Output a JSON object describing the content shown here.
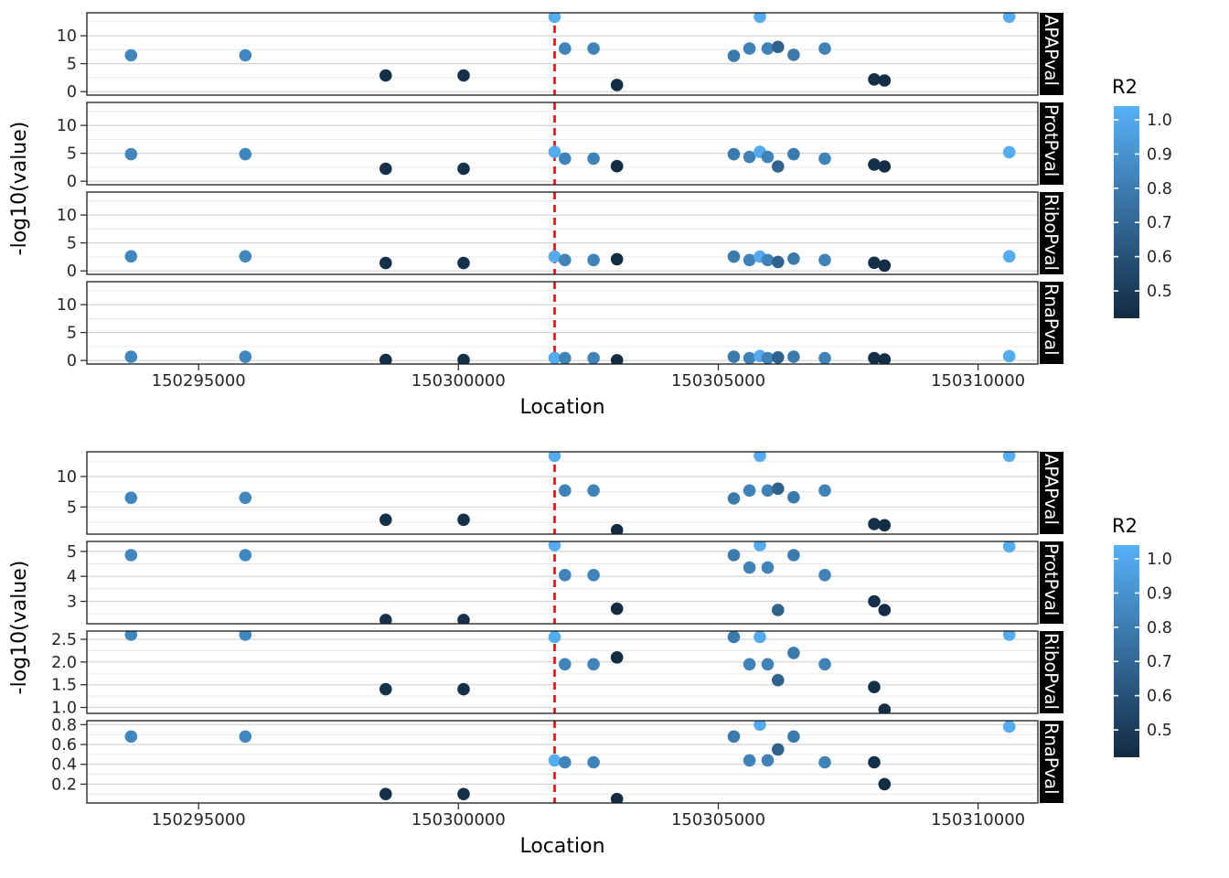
{
  "chart_data": {
    "type": "scatter",
    "ylabel": "-log10(value)",
    "x": {
      "label": "Location",
      "tick_values": [
        150295000,
        150300000,
        150305000,
        150310000
      ],
      "tick_labels": [
        "150295000",
        "150300000",
        "150305000",
        "150310000"
      ],
      "lim": [
        150292850,
        150311150
      ]
    },
    "vline": {
      "x": 150301850,
      "color": "#FF0000",
      "style": "dashed"
    },
    "legend": {
      "title": "R2",
      "tick_values": [
        1.0,
        0.9,
        0.8,
        0.7,
        0.6,
        0.5
      ],
      "tick_labels": [
        "1.0",
        "0.9",
        "0.8",
        "0.7",
        "0.6",
        "0.5"
      ],
      "bar_domain": [
        0.42,
        1.04
      ],
      "point_domain": [
        0.42,
        1.0
      ],
      "low_color": "#132B43",
      "high_color": "#56B1F7"
    },
    "points": [
      {
        "location": 150293700,
        "r2": 0.82,
        "apap": 6.5,
        "prot": 4.85,
        "ribo": 2.6,
        "rna": 0.68
      },
      {
        "location": 150295900,
        "r2": 0.82,
        "apap": 6.5,
        "prot": 4.85,
        "ribo": 2.6,
        "rna": 0.68
      },
      {
        "location": 150298600,
        "r2": 0.44,
        "apap": 2.9,
        "prot": 2.25,
        "ribo": 1.4,
        "rna": 0.1
      },
      {
        "location": 150300100,
        "r2": 0.44,
        "apap": 2.9,
        "prot": 2.25,
        "ribo": 1.4,
        "rna": 0.1
      },
      {
        "location": 150301850,
        "r2": 0.98,
        "apap": 13.4,
        "prot": 5.25,
        "ribo": 2.55,
        "rna": 0.44
      },
      {
        "location": 150302050,
        "r2": 0.8,
        "apap": 7.7,
        "prot": 4.05,
        "ribo": 1.95,
        "rna": 0.42
      },
      {
        "location": 150302600,
        "r2": 0.8,
        "apap": 7.7,
        "prot": 4.05,
        "ribo": 1.95,
        "rna": 0.42
      },
      {
        "location": 150303050,
        "r2": 0.42,
        "apap": 1.2,
        "prot": 2.7,
        "ribo": 2.1,
        "rna": 0.05
      },
      {
        "location": 150305300,
        "r2": 0.76,
        "apap": 6.4,
        "prot": 4.85,
        "ribo": 2.55,
        "rna": 0.68
      },
      {
        "location": 150305600,
        "r2": 0.8,
        "apap": 7.7,
        "prot": 4.35,
        "ribo": 1.95,
        "rna": 0.44
      },
      {
        "location": 150305800,
        "r2": 0.97,
        "apap": 13.4,
        "prot": 5.25,
        "ribo": 2.55,
        "rna": 0.8
      },
      {
        "location": 150305950,
        "r2": 0.8,
        "apap": 7.7,
        "prot": 4.35,
        "ribo": 1.95,
        "rna": 0.44
      },
      {
        "location": 150306150,
        "r2": 0.66,
        "apap": 8.0,
        "prot": 2.65,
        "ribo": 1.6,
        "rna": 0.55
      },
      {
        "location": 150306450,
        "r2": 0.76,
        "apap": 6.6,
        "prot": 4.85,
        "ribo": 2.2,
        "rna": 0.68
      },
      {
        "location": 150307050,
        "r2": 0.8,
        "apap": 7.7,
        "prot": 4.05,
        "ribo": 1.95,
        "rna": 0.42
      },
      {
        "location": 150308000,
        "r2": 0.44,
        "apap": 2.2,
        "prot": 3.0,
        "ribo": 1.45,
        "rna": 0.42
      },
      {
        "location": 150308200,
        "r2": 0.43,
        "apap": 2.0,
        "prot": 2.65,
        "ribo": 0.95,
        "rna": 0.2
      },
      {
        "location": 150310600,
        "r2": 0.98,
        "apap": 13.4,
        "prot": 5.2,
        "ribo": 2.6,
        "rna": 0.78
      }
    ],
    "figures": [
      {
        "scales": "fixed",
        "facets": [
          {
            "key": "apap",
            "label": "APAPval",
            "ylim": [
              -0.62,
              14.1
            ],
            "tick_values": [
              0,
              5,
              10
            ],
            "tick_labels": [
              "0",
              "5",
              "10"
            ],
            "minor_gridlines": [
              2.5,
              7.5,
              12.5
            ]
          },
          {
            "key": "prot",
            "label": "ProtPval",
            "ylim": [
              -0.62,
              14.1
            ],
            "tick_values": [
              0,
              5,
              10
            ],
            "tick_labels": [
              "0",
              "5",
              "10"
            ],
            "minor_gridlines": [
              2.5,
              7.5,
              12.5
            ]
          },
          {
            "key": "ribo",
            "label": "RiboPval",
            "ylim": [
              -0.62,
              14.1
            ],
            "tick_values": [
              0,
              5,
              10
            ],
            "tick_labels": [
              "0",
              "5",
              "10"
            ],
            "minor_gridlines": [
              2.5,
              7.5,
              12.5
            ]
          },
          {
            "key": "rna",
            "label": "RnaPval",
            "ylim": [
              -0.62,
              14.1
            ],
            "tick_values": [
              0,
              5,
              10
            ],
            "tick_labels": [
              "0",
              "5",
              "10"
            ],
            "minor_gridlines": [
              2.5,
              7.5,
              12.5
            ]
          }
        ]
      },
      {
        "scales": "free_y",
        "facets": [
          {
            "key": "apap",
            "label": "APAPval",
            "ylim": [
              0.55,
              14.05
            ],
            "tick_values": [
              5,
              10
            ],
            "tick_labels": [
              "5",
              "10"
            ],
            "minor_gridlines": [
              2.5,
              7.5,
              12.5
            ]
          },
          {
            "key": "prot",
            "label": "ProtPval",
            "ylim": [
              2.1,
              5.4
            ],
            "tick_values": [
              3,
              4,
              5
            ],
            "tick_labels": [
              "3",
              "4",
              "5"
            ],
            "minor_gridlines": [
              2.5,
              3.5,
              4.5
            ]
          },
          {
            "key": "ribo",
            "label": "RiboPval",
            "ylim": [
              0.87,
              2.68
            ],
            "tick_values": [
              1.0,
              1.5,
              2.0,
              2.5
            ],
            "tick_labels": [
              "1.0",
              "1.5",
              "2.0",
              "2.5"
            ],
            "minor_gridlines": [
              1.25,
              1.75,
              2.25
            ]
          },
          {
            "key": "rna",
            "label": "RnaPval",
            "ylim": [
              0.01,
              0.84
            ],
            "tick_values": [
              0.2,
              0.4,
              0.6,
              0.8
            ],
            "tick_labels": [
              "0.2",
              "0.4",
              "0.6",
              "0.8"
            ],
            "minor_gridlines": [
              0.1,
              0.3,
              0.5,
              0.7
            ]
          }
        ]
      }
    ]
  },
  "colors": {
    "grid_major": "#D4D4D4",
    "grid_minor": "#E9E9E9",
    "panel_border": "#1A1A1A",
    "tick": "#333333",
    "tick_text": "#262626",
    "title_text": "#000000",
    "strip_bg": "#000000",
    "strip_text": "#FFFFFF",
    "background": "#FFFFFF"
  }
}
